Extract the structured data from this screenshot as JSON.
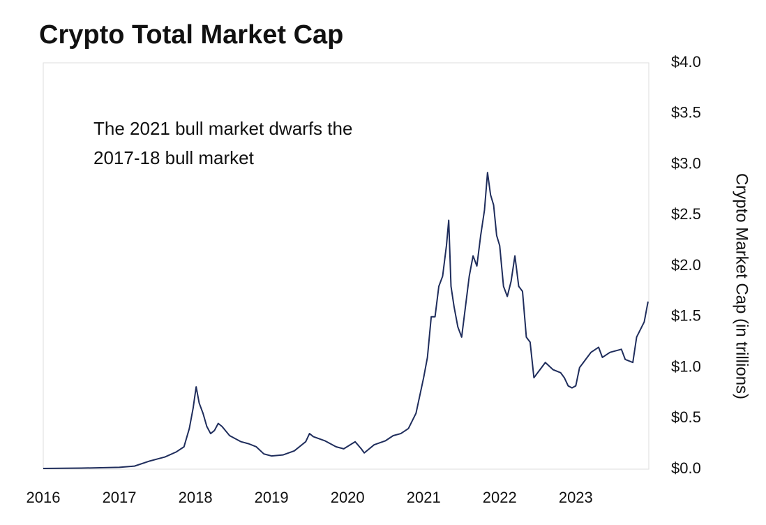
{
  "chart_data": {
    "type": "line",
    "title": "Crypto Total Market Cap",
    "annotation": [
      "The 2021 bull market dwarfs the",
      "2017-18 bull market"
    ],
    "y_label": "Crypto Market Cap (in trillions)",
    "x": [
      2016.0,
      2016.5,
      2017.0,
      2017.2,
      2017.4,
      2017.5,
      2017.6,
      2017.75,
      2017.85,
      2017.92,
      2017.97,
      2018.01,
      2018.05,
      2018.1,
      2018.15,
      2018.2,
      2018.25,
      2018.3,
      2018.35,
      2018.45,
      2018.6,
      2018.7,
      2018.8,
      2018.9,
      2019.0,
      2019.15,
      2019.3,
      2019.45,
      2019.5,
      2019.55,
      2019.7,
      2019.85,
      2019.95,
      2020.1,
      2020.18,
      2020.22,
      2020.35,
      2020.5,
      2020.6,
      2020.7,
      2020.8,
      2020.9,
      2021.0,
      2021.05,
      2021.1,
      2021.15,
      2021.2,
      2021.25,
      2021.3,
      2021.33,
      2021.36,
      2021.4,
      2021.45,
      2021.5,
      2021.55,
      2021.6,
      2021.65,
      2021.7,
      2021.75,
      2021.8,
      2021.84,
      2021.88,
      2021.92,
      2021.96,
      2022.0,
      2022.05,
      2022.1,
      2022.15,
      2022.2,
      2022.25,
      2022.3,
      2022.35,
      2022.4,
      2022.45,
      2022.5,
      2022.6,
      2022.7,
      2022.8,
      2022.85,
      2022.9,
      2022.95,
      2023.0,
      2023.05,
      2023.1,
      2023.2,
      2023.3,
      2023.35,
      2023.45,
      2023.6,
      2023.65,
      2023.75,
      2023.8,
      2023.9,
      2023.95
    ],
    "series": [
      {
        "name": "Crypto Total Market Cap",
        "color": "#1f2d5c",
        "values": [
          0.007,
          0.01,
          0.018,
          0.03,
          0.08,
          0.1,
          0.12,
          0.17,
          0.22,
          0.4,
          0.6,
          0.81,
          0.65,
          0.55,
          0.42,
          0.35,
          0.38,
          0.45,
          0.42,
          0.33,
          0.27,
          0.25,
          0.22,
          0.15,
          0.13,
          0.14,
          0.18,
          0.27,
          0.35,
          0.32,
          0.28,
          0.22,
          0.2,
          0.27,
          0.2,
          0.16,
          0.24,
          0.28,
          0.33,
          0.35,
          0.4,
          0.55,
          0.9,
          1.1,
          1.5,
          1.5,
          1.8,
          1.9,
          2.2,
          2.45,
          1.8,
          1.6,
          1.4,
          1.3,
          1.6,
          1.9,
          2.1,
          2.0,
          2.3,
          2.55,
          2.92,
          2.7,
          2.6,
          2.3,
          2.2,
          1.8,
          1.7,
          1.85,
          2.1,
          1.8,
          1.75,
          1.3,
          1.25,
          0.9,
          0.95,
          1.05,
          0.98,
          0.95,
          0.9,
          0.82,
          0.8,
          0.82,
          1.0,
          1.05,
          1.15,
          1.2,
          1.1,
          1.15,
          1.18,
          1.08,
          1.05,
          1.3,
          1.45,
          1.65
        ]
      }
    ],
    "xlim": [
      2016,
      2023.96
    ],
    "xticks": [
      2016,
      2017,
      2018,
      2019,
      2020,
      2021,
      2022,
      2023
    ],
    "ylim": [
      0,
      4
    ],
    "yticks": [
      {
        "value": 0,
        "label": "$0.0"
      },
      {
        "value": 0.5,
        "label": "$0.5"
      },
      {
        "value": 1,
        "label": "$1.0"
      },
      {
        "value": 1.5,
        "label": "$1.5"
      },
      {
        "value": 2,
        "label": "$2.0"
      },
      {
        "value": 2.5,
        "label": "$2.5"
      },
      {
        "value": 3,
        "label": "$3.0"
      },
      {
        "value": 3.5,
        "label": "$3.5"
      },
      {
        "value": 4,
        "label": "$4.0"
      }
    ],
    "y_axis_side": "right"
  }
}
